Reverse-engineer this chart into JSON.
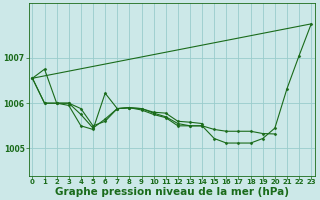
{
  "bg_color": "#cce8e8",
  "grid_color": "#99cccc",
  "line_color": "#1a6b1a",
  "xlabel": "Graphe pression niveau de la mer (hPa)",
  "xlabel_fontsize": 7.5,
  "xticks": [
    0,
    1,
    2,
    3,
    4,
    5,
    6,
    7,
    8,
    9,
    10,
    11,
    12,
    13,
    14,
    15,
    16,
    17,
    18,
    19,
    20,
    21,
    22,
    23
  ],
  "yticks": [
    1005,
    1006,
    1007
  ],
  "ylim": [
    1004.4,
    1008.2
  ],
  "xlim": [
    -0.3,
    23.3
  ],
  "series": [
    {
      "x": [
        0,
        1,
        2,
        3,
        4,
        5,
        6,
        7,
        8,
        9,
        10,
        11,
        12,
        13,
        14,
        15,
        16,
        17,
        18,
        19,
        20,
        21,
        22,
        23
      ],
      "y": [
        1006.55,
        1006.75,
        1006.0,
        1006.0,
        1005.75,
        1005.45,
        1005.65,
        1005.88,
        1005.9,
        1005.88,
        1005.78,
        1005.7,
        1005.55,
        1005.5,
        1005.5,
        1005.22,
        1005.12,
        1005.12,
        1005.12,
        1005.22,
        1005.45,
        1006.32,
        1007.05,
        1007.75
      ]
    },
    {
      "x": [
        0,
        1,
        2,
        3,
        4,
        5,
        6,
        7,
        8,
        9,
        10,
        11,
        12,
        13,
        14,
        15,
        16,
        17,
        18,
        19,
        20
      ],
      "y": [
        1006.55,
        1006.0,
        1006.0,
        1006.0,
        1005.88,
        1005.5,
        1005.6,
        1005.88,
        1005.9,
        1005.85,
        1005.75,
        1005.68,
        1005.5,
        1005.5,
        1005.5,
        1005.42,
        1005.38,
        1005.38,
        1005.38,
        1005.33,
        1005.32
      ]
    },
    {
      "x": [
        0,
        1,
        2,
        3,
        4,
        5,
        6,
        7,
        8,
        9,
        10,
        11,
        12,
        13,
        14
      ],
      "y": [
        1006.55,
        1006.0,
        1006.0,
        1005.95,
        1005.5,
        1005.42,
        1006.22,
        1005.88,
        1005.9,
        1005.88,
        1005.8,
        1005.78,
        1005.6,
        1005.58,
        1005.55
      ]
    },
    {
      "x": [
        0,
        23
      ],
      "y": [
        1006.55,
        1007.75
      ]
    }
  ]
}
